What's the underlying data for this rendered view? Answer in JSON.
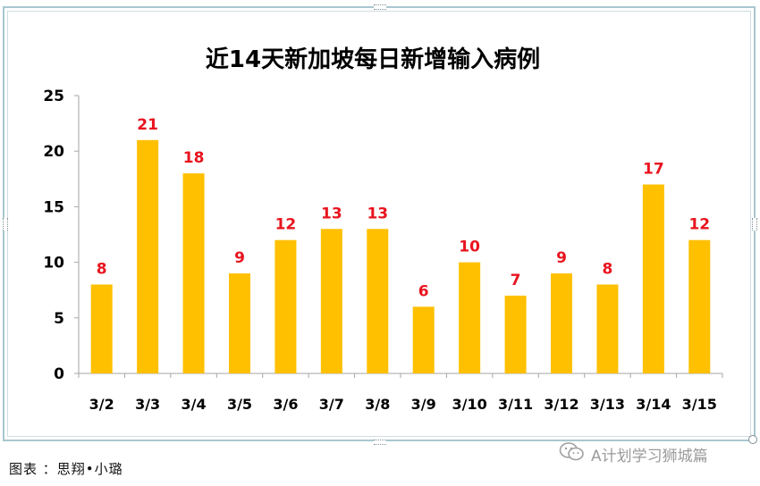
{
  "chart_data": {
    "type": "bar",
    "title": "近14天新加坡每日新增输入病例",
    "categories": [
      "3/2",
      "3/3",
      "3/4",
      "3/5",
      "3/6",
      "3/7",
      "3/8",
      "3/9",
      "3/10",
      "3/11",
      "3/12",
      "3/13",
      "3/14",
      "3/15"
    ],
    "values": [
      8,
      21,
      18,
      9,
      12,
      13,
      13,
      6,
      10,
      7,
      9,
      8,
      17,
      12
    ],
    "ylim": [
      0,
      25
    ],
    "yticks": [
      "0",
      "5",
      "10",
      "15",
      "20",
      "25"
    ],
    "xlabel": "",
    "ylabel": "",
    "grid": false,
    "legend": "none",
    "data_labels": [
      "8",
      "21",
      "18",
      "9",
      "12",
      "13",
      "13",
      "6",
      "10",
      "7",
      "9",
      "8",
      "17",
      "12"
    ]
  },
  "colors": {
    "bar": "#ffc000",
    "label": "#e8141e",
    "axis": "#a6a6a6",
    "frame": "#a9c7cf"
  },
  "footer": {
    "caption": "图表 ：思翔•小璐",
    "watermark": "A计划学习狮城篇",
    "watermark_icon": "wechat-icon"
  }
}
